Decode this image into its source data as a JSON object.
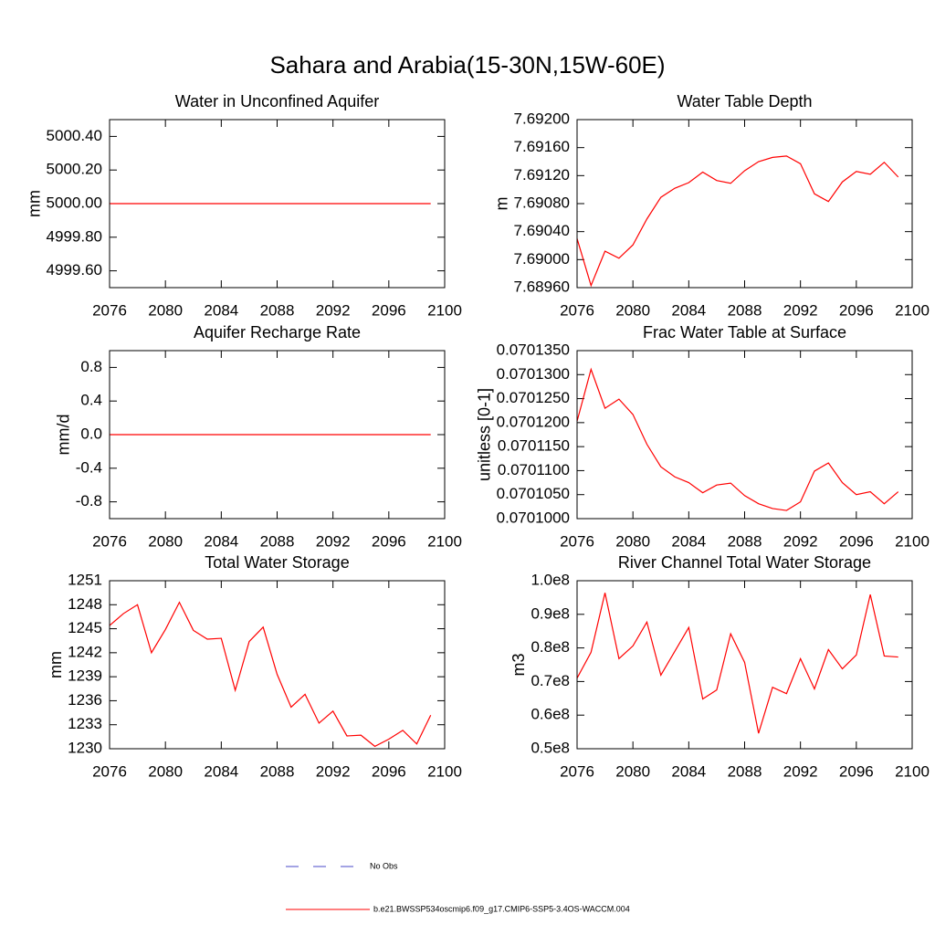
{
  "title": "Sahara and Arabia(15-30N,15W-60E)",
  "legend": [
    {
      "name": "No Obs",
      "color": "#4a4ac8",
      "dash": true
    },
    {
      "name": "b.e21.BWSSP534oscmip6.f09_g17.CMIP6-SSP5-3.4OS-WACCM.004",
      "color": "#ff0000",
      "dash": false
    }
  ],
  "chart_data": [
    {
      "type": "line",
      "title": "Water in Unconfined Aquifer",
      "y_label": "mm",
      "x": [
        2076,
        2077,
        2078,
        2079,
        2080,
        2081,
        2082,
        2083,
        2084,
        2085,
        2086,
        2087,
        2088,
        2089,
        2090,
        2091,
        2092,
        2093,
        2094,
        2095,
        2096,
        2097,
        2098,
        2099
      ],
      "series": [
        {
          "color": "#ff0000",
          "values": [
            5000,
            5000,
            5000,
            5000,
            5000,
            5000,
            5000,
            5000,
            5000,
            5000,
            5000,
            5000,
            5000,
            5000,
            5000,
            5000,
            5000,
            5000,
            5000,
            5000,
            5000,
            5000,
            5000,
            5000
          ]
        }
      ],
      "xlim": [
        2076,
        2100
      ],
      "xticks": [
        2076,
        2080,
        2084,
        2088,
        2092,
        2096,
        2100
      ],
      "ylim": [
        4999.5,
        5000.5
      ],
      "yticks": [
        {
          "value": 4999.6,
          "label": "4999.60"
        },
        {
          "value": 4999.8,
          "label": "4999.80"
        },
        {
          "value": 5000,
          "label": "5000.00"
        },
        {
          "value": 5000.2,
          "label": "5000.20"
        },
        {
          "value": 5000.4,
          "label": "5000.40"
        }
      ]
    },
    {
      "type": "line",
      "title": "Water Table Depth",
      "y_label": "m",
      "x": [
        2076,
        2077,
        2078,
        2079,
        2080,
        2081,
        2082,
        2083,
        2084,
        2085,
        2086,
        2087,
        2088,
        2089,
        2090,
        2091,
        2092,
        2093,
        2094,
        2095,
        2096,
        2097,
        2098,
        2099
      ],
      "series": [
        {
          "color": "#ff0000",
          "values": [
            7.6903,
            7.68963,
            7.69012,
            7.69002,
            7.69021,
            7.69058,
            7.69089,
            7.69102,
            7.6911,
            7.69125,
            7.69113,
            7.69109,
            7.69127,
            7.6914,
            7.69146,
            7.69148,
            7.69137,
            7.69094,
            7.69083,
            7.69111,
            7.69126,
            7.69122,
            7.69139,
            7.69118
          ]
        }
      ],
      "xlim": [
        2076,
        2100
      ],
      "xticks": [
        2076,
        2080,
        2084,
        2088,
        2092,
        2096,
        2100
      ],
      "ylim": [
        7.6896,
        7.692
      ],
      "yticks": [
        {
          "value": 7.6896,
          "label": "7.68960"
        },
        {
          "value": 7.69,
          "label": "7.69000"
        },
        {
          "value": 7.6904,
          "label": "7.69040"
        },
        {
          "value": 7.6908,
          "label": "7.69080"
        },
        {
          "value": 7.6912,
          "label": "7.69120"
        },
        {
          "value": 7.6916,
          "label": "7.69160"
        },
        {
          "value": 7.692,
          "label": "7.69200"
        }
      ]
    },
    {
      "type": "line",
      "title": "Aquifer Recharge Rate",
      "y_label": "mm/d",
      "x": [
        2076,
        2077,
        2078,
        2079,
        2080,
        2081,
        2082,
        2083,
        2084,
        2085,
        2086,
        2087,
        2088,
        2089,
        2090,
        2091,
        2092,
        2093,
        2094,
        2095,
        2096,
        2097,
        2098,
        2099
      ],
      "series": [
        {
          "color": "#ff0000",
          "values": [
            0,
            0,
            0,
            0,
            0,
            0,
            0,
            0,
            0,
            0,
            0,
            0,
            0,
            0,
            0,
            0,
            0,
            0,
            0,
            0,
            0,
            0,
            0,
            0
          ]
        }
      ],
      "xlim": [
        2076,
        2100
      ],
      "xticks": [
        2076,
        2080,
        2084,
        2088,
        2092,
        2096,
        2100
      ],
      "ylim": [
        -1,
        1
      ],
      "yticks": [
        -0.8,
        -0.4,
        {
          "value": 0,
          "label": "0.0"
        },
        0.4,
        0.8
      ]
    },
    {
      "type": "line",
      "title": "Frac Water Table at Surface",
      "y_label": "unitless [0-1]",
      "x": [
        2076,
        2077,
        2078,
        2079,
        2080,
        2081,
        2082,
        2083,
        2084,
        2085,
        2086,
        2087,
        2088,
        2089,
        2090,
        2091,
        2092,
        2093,
        2094,
        2095,
        2096,
        2097,
        2098,
        2099
      ],
      "series": [
        {
          "color": "#ff0000",
          "values": [
            0.0701203,
            0.0701311,
            0.070123,
            0.0701249,
            0.0701217,
            0.0701155,
            0.0701108,
            0.0701087,
            0.0701075,
            0.0701054,
            0.070107,
            0.0701074,
            0.0701048,
            0.0701031,
            0.0701021,
            0.0701017,
            0.0701035,
            0.0701099,
            0.0701116,
            0.0701075,
            0.070105,
            0.0701056,
            0.0701031,
            0.0701056
          ]
        }
      ],
      "xlim": [
        2076,
        2100
      ],
      "xticks": [
        2076,
        2080,
        2084,
        2088,
        2092,
        2096,
        2100
      ],
      "ylim": [
        0.0701,
        0.070135
      ],
      "yticks": [
        {
          "value": 0.0701,
          "label": "0.0701000"
        },
        {
          "value": 0.070105,
          "label": "0.0701050"
        },
        {
          "value": 0.07011,
          "label": "0.0701100"
        },
        {
          "value": 0.070115,
          "label": "0.0701150"
        },
        {
          "value": 0.07012,
          "label": "0.0701200"
        },
        {
          "value": 0.070125,
          "label": "0.0701250"
        },
        {
          "value": 0.07013,
          "label": "0.0701300"
        },
        {
          "value": 0.070135,
          "label": "0.0701350"
        }
      ]
    },
    {
      "type": "line",
      "title": "Total Water Storage",
      "y_label": "mm",
      "x": [
        2076,
        2077,
        2078,
        2079,
        2080,
        2081,
        2082,
        2083,
        2084,
        2085,
        2086,
        2087,
        2088,
        2089,
        2090,
        2091,
        2092,
        2093,
        2094,
        2095,
        2096,
        2097,
        2098,
        2099
      ],
      "series": [
        {
          "color": "#ff0000",
          "values": [
            1245.4,
            1246.9,
            1248.0,
            1242.0,
            1244.9,
            1248.3,
            1244.8,
            1243.7,
            1243.8,
            1237.3,
            1243.4,
            1245.2,
            1239.3,
            1235.2,
            1236.8,
            1233.2,
            1234.7,
            1231.6,
            1231.7,
            1230.3,
            1231.2,
            1232.3,
            1230.6,
            1234.2
          ]
        }
      ],
      "xlim": [
        2076,
        2100
      ],
      "xticks": [
        2076,
        2080,
        2084,
        2088,
        2092,
        2096,
        2100
      ],
      "ylim": [
        1230,
        1251
      ],
      "yticks": [
        1230,
        1233,
        1236,
        1239,
        1242,
        1245,
        1248,
        1251
      ]
    },
    {
      "type": "line",
      "title": "River Channel Total Water Storage",
      "y_label": "m3",
      "x": [
        2076,
        2077,
        2078,
        2079,
        2080,
        2081,
        2082,
        2083,
        2084,
        2085,
        2086,
        2087,
        2088,
        2089,
        2090,
        2091,
        2092,
        2093,
        2094,
        2095,
        2096,
        2097,
        2098,
        2099
      ],
      "series": [
        {
          "color": "#ff0000",
          "values": [
            71000000,
            78700000,
            96400000,
            76800000,
            80600000,
            87700000,
            71900000,
            79000000,
            86100000,
            64800000,
            67500000,
            84200000,
            75700000,
            54600000,
            68300000,
            66400000,
            76800000,
            67800000,
            79500000,
            73800000,
            77900000,
            95900000,
            77600000,
            77300000
          ]
        }
      ],
      "xlim": [
        2076,
        2100
      ],
      "xticks": [
        2076,
        2080,
        2084,
        2088,
        2092,
        2096,
        2100
      ],
      "ylim": [
        50000000,
        100000000
      ],
      "yticks": [
        {
          "value": 50000000,
          "label": "0.5e8"
        },
        {
          "value": 60000000,
          "label": "0.6e8"
        },
        {
          "value": 70000000,
          "label": "0.7e8"
        },
        {
          "value": 80000000,
          "label": "0.8e8"
        },
        {
          "value": 90000000,
          "label": "0.9e8"
        },
        {
          "value": 100000000,
          "label": "1.0e8"
        }
      ]
    }
  ]
}
